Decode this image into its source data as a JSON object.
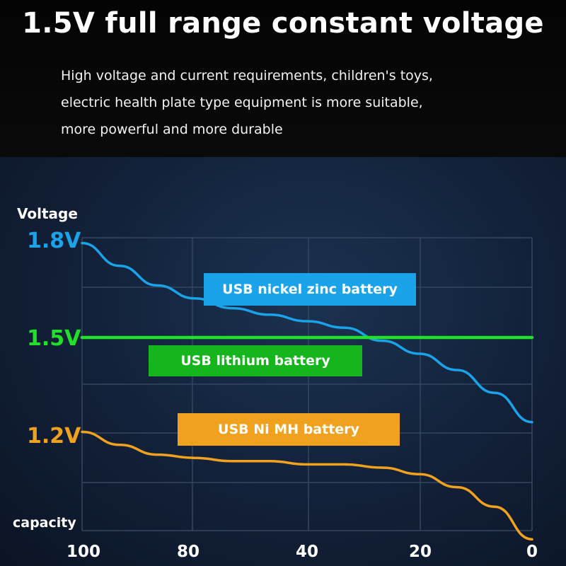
{
  "header": {
    "title": "1.5V full range constant voltage",
    "description_lines": [
      "High voltage and current requirements, children's toys,",
      "electric health plate type equipment is more suitable,",
      "more powerful and more durable"
    ]
  },
  "chart_data": {
    "type": "line",
    "ylabel": "Voltage",
    "xlabel": "capacity",
    "x_ticks": [
      "100",
      "80",
      "40",
      "20",
      "0"
    ],
    "y_ticks": [
      "1.8V",
      "1.5V",
      "1.2V"
    ],
    "grid": true,
    "series": [
      {
        "name": "USB nickel zinc battery",
        "color": "#1aa3e8",
        "values": [
          1.79,
          1.72,
          1.66,
          1.62,
          1.59,
          1.57,
          1.55,
          1.53,
          1.49,
          1.45,
          1.4,
          1.33,
          1.24
        ]
      },
      {
        "name": "USB lithium battery",
        "color": "#21e02a",
        "values": [
          1.5,
          1.5,
          1.5,
          1.5,
          1.5,
          1.5,
          1.5,
          1.5,
          1.5,
          1.5,
          1.5,
          1.5,
          1.5
        ]
      },
      {
        "name": "USB Ni MH battery",
        "color": "#f0a21e",
        "values": [
          1.21,
          1.17,
          1.14,
          1.13,
          1.12,
          1.12,
          1.11,
          1.11,
          1.1,
          1.08,
          1.04,
          0.98,
          0.88
        ]
      }
    ],
    "tick_colors": {
      "1.8V": "#1aa3e8",
      "1.5V": "#21e02a",
      "1.2V": "#f0a21e"
    }
  }
}
